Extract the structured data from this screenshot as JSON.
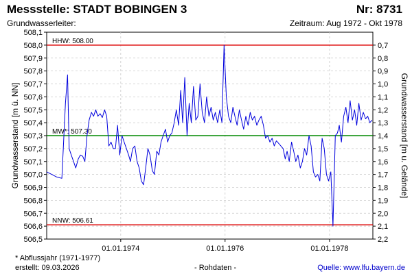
{
  "header": {
    "title_left": "Messstelle: STADT BOBINGEN 3",
    "title_right": "Nr: 8731",
    "subtitle_left": "Grundwasserleiter:",
    "subtitle_right": "Zeitraum: Aug 1972 - Okt 1978"
  },
  "footer": {
    "note": "* Abflussjahr (1971-1977)",
    "created": "erstellt:  09.03.2026",
    "rawdata": "- Rohdaten -",
    "source_label": "Quelle:",
    "source_link": "www.lfu.bayern.de"
  },
  "colors": {
    "series": "#0000dd",
    "extreme_lines": "#dd0000",
    "mean_line": "#008800",
    "grid": "#c8c8c8",
    "link": "#0000cc"
  },
  "chart_data": {
    "type": "line",
    "xlabel": "",
    "ylabel": "Grundwasserstand [m ü. NN]",
    "ylabel_right": "Grundwasserstand [m u. Gelände]",
    "ylim": [
      506.5,
      508.1
    ],
    "ylim_right": [
      2.2,
      0.6
    ],
    "xlim": [
      "1972-08-01",
      "1978-10-31"
    ],
    "x_ticks": [
      "01.01.1974",
      "01.01.1976",
      "01.01.1978"
    ],
    "y_ticks": [
      "508,1",
      "508,0",
      "507,9",
      "507,8",
      "507,7",
      "507,6",
      "507,5",
      "507,4",
      "507,3",
      "507,2",
      "507,1",
      "507,0",
      "506,9",
      "506,8",
      "506,7",
      "506,6",
      "506,5"
    ],
    "y_ticks_right": [
      "0,7",
      "0,8",
      "0,9",
      "1,0",
      "1,1",
      "1,2",
      "1,3",
      "1,4",
      "1,5",
      "1,6",
      "1,7",
      "1,8",
      "1,9",
      "2,0",
      "2,1",
      "2,2"
    ],
    "grid": true,
    "reference_lines": [
      {
        "label": "HHW: 508.00",
        "value": 508.0,
        "kind": "extreme"
      },
      {
        "label": "MW*: 507.30",
        "value": 507.3,
        "kind": "mean"
      },
      {
        "label": "NNW: 506.61",
        "value": 506.61,
        "kind": "extreme"
      }
    ],
    "series": [
      {
        "x": [
          "1972-08-01",
          "1972-09-05",
          "1972-10-10",
          "1972-11-15",
          "1972-12-10",
          "1972-12-25",
          "1973-01-05",
          "1973-01-20",
          "1973-02-05",
          "1973-02-20",
          "1973-03-10",
          "1973-03-25",
          "1973-04-10",
          "1973-04-25",
          "1973-05-10",
          "1973-05-25",
          "1973-06-10",
          "1973-06-25",
          "1973-07-10",
          "1973-07-25",
          "1973-08-10",
          "1973-08-25",
          "1973-09-10",
          "1973-09-25",
          "1973-10-10",
          "1973-10-25",
          "1973-11-10",
          "1973-11-25",
          "1973-12-10",
          "1973-12-25",
          "1974-01-10",
          "1974-01-25",
          "1974-02-10",
          "1974-02-25",
          "1974-03-10",
          "1974-03-25",
          "1974-04-10",
          "1974-04-25",
          "1974-05-10",
          "1974-05-25",
          "1974-06-10",
          "1974-06-25",
          "1974-07-10",
          "1974-07-25",
          "1974-08-10",
          "1974-08-25",
          "1974-09-10",
          "1974-09-25",
          "1974-10-10",
          "1974-10-25",
          "1974-11-10",
          "1974-11-25",
          "1974-12-10",
          "1974-12-25",
          "1975-01-10",
          "1975-01-25",
          "1975-02-10",
          "1975-02-25",
          "1975-03-10",
          "1975-03-25",
          "1975-04-10",
          "1975-04-25",
          "1975-05-10",
          "1975-05-25",
          "1975-06-10",
          "1975-06-25",
          "1975-07-10",
          "1975-07-25",
          "1975-08-10",
          "1975-08-25",
          "1975-09-10",
          "1975-09-25",
          "1975-10-10",
          "1975-10-25",
          "1975-11-10",
          "1975-11-25",
          "1975-12-10",
          "1975-12-25",
          "1976-01-10",
          "1976-01-25",
          "1976-02-10",
          "1976-02-25",
          "1976-03-10",
          "1976-03-25",
          "1976-04-10",
          "1976-04-25",
          "1976-05-10",
          "1976-05-25",
          "1976-06-10",
          "1976-06-25",
          "1976-07-10",
          "1976-07-25",
          "1976-08-10",
          "1976-08-25",
          "1976-09-10",
          "1976-09-25",
          "1976-10-10",
          "1976-10-25",
          "1976-11-10",
          "1976-11-25",
          "1976-12-10",
          "1976-12-25",
          "1977-01-10",
          "1977-01-25",
          "1977-02-10",
          "1977-02-25",
          "1977-03-10",
          "1977-03-25",
          "1977-04-10",
          "1977-04-25",
          "1977-05-10",
          "1977-05-25",
          "1977-06-10",
          "1977-06-25",
          "1977-07-10",
          "1977-07-25",
          "1977-08-10",
          "1977-08-25",
          "1977-09-10",
          "1977-09-25",
          "1977-10-10",
          "1977-10-25",
          "1977-11-10",
          "1977-11-25",
          "1977-12-10",
          "1977-12-25",
          "1978-01-10",
          "1978-01-25",
          "1978-02-10",
          "1978-02-25",
          "1978-03-10",
          "1978-03-25",
          "1978-04-10",
          "1978-04-25",
          "1978-05-10",
          "1978-05-25",
          "1978-06-10",
          "1978-06-25",
          "1978-07-10",
          "1978-07-25",
          "1978-08-10",
          "1978-08-25",
          "1978-09-10",
          "1978-09-25",
          "1978-10-10",
          "1978-10-25"
        ],
        "values": [
          507.02,
          507.0,
          506.98,
          506.97,
          507.55,
          507.77,
          507.2,
          507.15,
          507.1,
          507.05,
          507.12,
          507.15,
          507.14,
          507.1,
          507.3,
          507.42,
          507.48,
          507.45,
          507.5,
          507.45,
          507.47,
          507.44,
          507.5,
          507.45,
          507.22,
          507.25,
          507.2,
          507.2,
          507.38,
          507.15,
          507.3,
          507.25,
          507.2,
          507.15,
          507.1,
          507.2,
          507.22,
          507.1,
          507.05,
          506.95,
          506.92,
          507.05,
          507.2,
          507.15,
          507.03,
          507.0,
          507.18,
          507.15,
          507.25,
          507.3,
          507.35,
          507.25,
          507.3,
          507.32,
          507.4,
          507.5,
          507.38,
          507.65,
          507.4,
          507.75,
          507.3,
          507.55,
          507.4,
          507.68,
          507.42,
          507.45,
          507.7,
          507.48,
          507.4,
          507.6,
          507.45,
          507.52,
          507.42,
          507.48,
          507.4,
          507.5,
          507.4,
          508.0,
          507.6,
          507.45,
          507.4,
          507.52,
          507.45,
          507.38,
          507.5,
          507.42,
          507.35,
          507.45,
          507.38,
          507.48,
          507.42,
          507.45,
          507.38,
          507.42,
          507.45,
          507.38,
          507.28,
          507.3,
          507.25,
          507.28,
          507.22,
          507.26,
          507.24,
          507.22,
          507.2,
          507.12,
          507.18,
          507.1,
          507.25,
          507.18,
          507.1,
          507.15,
          507.05,
          507.1,
          507.2,
          507.15,
          507.3,
          507.22,
          507.02,
          506.98,
          507.0,
          506.95,
          507.28,
          507.2,
          507.0,
          506.95,
          507.02,
          506.6,
          507.3,
          507.32,
          507.38,
          507.25,
          507.45,
          507.52,
          507.4,
          507.57,
          507.42,
          507.5,
          507.38,
          507.55,
          507.42,
          507.48,
          507.43,
          507.45,
          507.4,
          507.42
        ]
      }
    ]
  }
}
